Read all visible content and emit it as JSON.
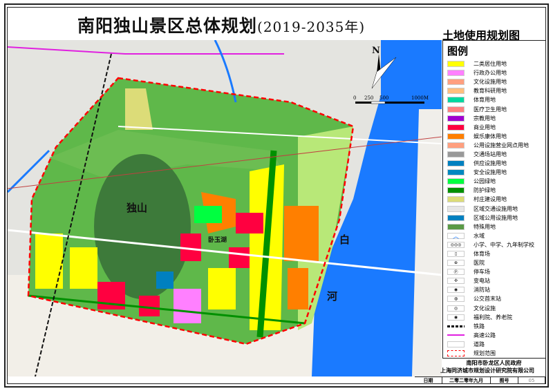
{
  "header": {
    "title": "南阳独山景区总体规划",
    "years": "(2019-2035年)",
    "subtitle": "土地使用规划图"
  },
  "map": {
    "labels": {
      "mountain": "独山",
      "lake": "卧玉湖",
      "river_1": "白",
      "river_2": "河"
    },
    "north": "N",
    "scale": {
      "ticks": [
        "0",
        "250",
        "500",
        "1000M"
      ]
    }
  },
  "legend": {
    "title": "图例",
    "items": [
      {
        "label": "二类居住用地",
        "color": "#ffff00"
      },
      {
        "label": "行政办公用地",
        "color": "#ff80ff"
      },
      {
        "label": "文化设施用地",
        "color": "#ff9f7f"
      },
      {
        "label": "教育科研用地",
        "color": "#ffbf7f"
      },
      {
        "label": "体育用地",
        "color": "#00d8a0"
      },
      {
        "label": "医疗卫生用地",
        "color": "#ff7f7f"
      },
      {
        "label": "宗教用地",
        "color": "#a000d0"
      },
      {
        "label": "商业用地",
        "color": "#ff0040"
      },
      {
        "label": "娱乐康体用地",
        "color": "#ff7f00"
      },
      {
        "label": "公用设施营业网点用地",
        "color": "#ff9f7f"
      },
      {
        "label": "交通场站用地",
        "color": "#999999"
      },
      {
        "label": "供应设施用地",
        "color": "#0080c0"
      },
      {
        "label": "安全设施用地",
        "color": "#0088c0"
      },
      {
        "label": "公园绿地",
        "color": "#00ff40"
      },
      {
        "label": "防护绿地",
        "color": "#009000"
      },
      {
        "label": "村庄建设用地",
        "color": "#dcdc78"
      },
      {
        "label": "区域交通设施用地",
        "color": "#e6e6e6"
      },
      {
        "label": "区域公用设施用地",
        "color": "#0080c0"
      },
      {
        "label": "特殊用地",
        "color": "#5a9a46"
      }
    ],
    "symbols": [
      {
        "label": "水域",
        "icon": "water-icon",
        "glyph": "︿"
      },
      {
        "label": "小学、中学、九年制学校",
        "icon": "school-icon",
        "glyph": "◎◎◎"
      },
      {
        "label": "体育场",
        "icon": "stadium-icon",
        "glyph": "▯"
      },
      {
        "label": "医院",
        "icon": "hospital-icon",
        "glyph": "⊕"
      },
      {
        "label": "停车场",
        "icon": "parking-icon",
        "glyph": "Ⓟ"
      },
      {
        "label": "变电站",
        "icon": "substation-icon",
        "glyph": "✣"
      },
      {
        "label": "消防站",
        "icon": "fire-station-icon",
        "glyph": "◉"
      },
      {
        "label": "公交首末站",
        "icon": "bus-station-icon",
        "glyph": "◍"
      },
      {
        "label": "文化设施",
        "icon": "culture-icon",
        "glyph": "◎"
      },
      {
        "label": "福利院、养老院",
        "icon": "welfare-icon",
        "glyph": "◉"
      },
      {
        "label": "铁路",
        "icon": "railway-icon",
        "glyph": ""
      },
      {
        "label": "高速公路",
        "icon": "expressway-icon",
        "glyph": ""
      },
      {
        "label": "道路",
        "icon": "road-icon",
        "glyph": ""
      },
      {
        "label": "规划范围",
        "icon": "boundary-icon",
        "glyph": ""
      }
    ]
  },
  "footer": {
    "org1": "南阳市卧龙区人民政府",
    "org2": "上海同济城市规划设计研究院有限公司",
    "date_label": "日期",
    "date": "二零二零年九月",
    "fig_label": "图号",
    "fig_no": "05"
  }
}
